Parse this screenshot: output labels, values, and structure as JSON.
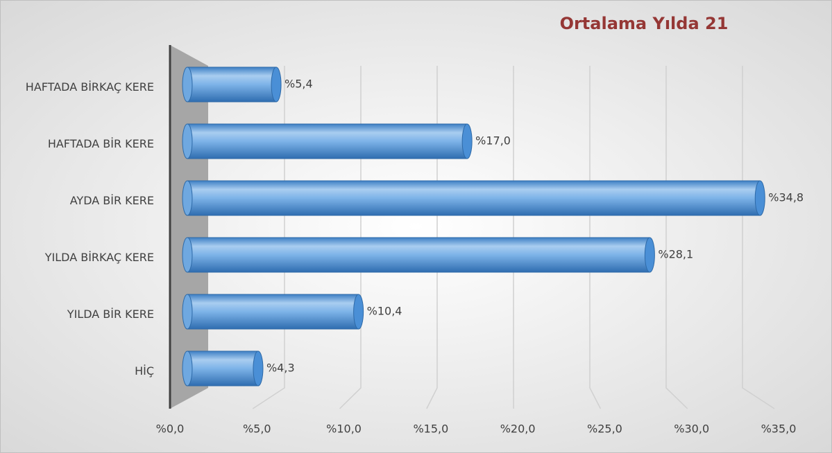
{
  "chart_data": {
    "type": "bar",
    "orientation": "horizontal",
    "title": "Ortalama Yılda 21",
    "categories": [
      "HAFTADA BİRKAÇ KERE",
      "HAFTADA BİR KERE",
      "AYDA BİR KERE",
      "YILDA BİRKAÇ KERE",
      "YILDA BİR KERE",
      "HİÇ"
    ],
    "values": [
      5.4,
      17.0,
      34.8,
      28.1,
      10.4,
      4.3
    ],
    "value_labels": [
      "%5,4",
      "%17,0",
      "%34,8",
      "%28,1",
      "%10,4",
      "%4,3"
    ],
    "color": "#5b9bd5",
    "xlim": [
      0,
      35
    ],
    "xticks": [
      {
        "value": 0,
        "label": "%0,0"
      },
      {
        "value": 5,
        "label": "%5,0"
      },
      {
        "value": 10,
        "label": "%10,0"
      },
      {
        "value": 15,
        "label": "%15,0"
      },
      {
        "value": 20,
        "label": "%20,0"
      },
      {
        "value": 25,
        "label": "%25,0"
      },
      {
        "value": 30,
        "label": "%30,0"
      },
      {
        "value": 35,
        "label": "%35,0"
      }
    ],
    "grid": true
  }
}
